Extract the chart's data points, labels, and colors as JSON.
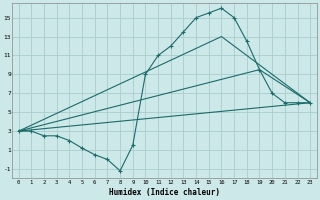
{
  "xlabel": "Humidex (Indice chaleur)",
  "background_color": "#cde8e8",
  "grid_color": "#aacccc",
  "line_color": "#1a6b6b",
  "xlim": [
    -0.5,
    23.5
  ],
  "ylim": [
    -2.0,
    16.5
  ],
  "xticks": [
    0,
    1,
    2,
    3,
    4,
    5,
    6,
    7,
    8,
    9,
    10,
    11,
    12,
    13,
    14,
    15,
    16,
    17,
    18,
    19,
    20,
    21,
    22,
    23
  ],
  "yticks": [
    -1,
    1,
    3,
    5,
    7,
    9,
    11,
    13,
    15
  ],
  "line1_x": [
    0,
    1,
    2,
    3,
    4,
    5,
    6,
    7,
    8,
    9,
    10,
    11,
    12,
    13,
    14,
    15,
    16,
    17,
    18,
    19,
    20,
    21,
    22,
    23
  ],
  "line1_y": [
    3.0,
    3.0,
    2.5,
    2.5,
    2.0,
    1.2,
    0.5,
    0.0,
    -1.2,
    1.5,
    9.0,
    11.0,
    12.0,
    13.5,
    15.0,
    15.5,
    16.0,
    15.0,
    12.5,
    9.5,
    7.0,
    6.0,
    6.0,
    6.0
  ],
  "line2_x": [
    0,
    23
  ],
  "line2_y": [
    3.0,
    6.0
  ],
  "line3_x": [
    0,
    16,
    23
  ],
  "line3_y": [
    3.0,
    13.0,
    6.0
  ],
  "line4_x": [
    0,
    19,
    23
  ],
  "line4_y": [
    3.0,
    9.5,
    6.0
  ]
}
